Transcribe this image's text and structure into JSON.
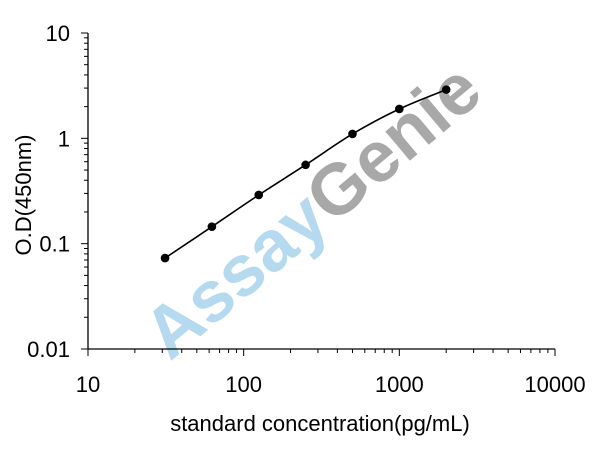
{
  "chart_data": {
    "type": "line",
    "title": "",
    "xlabel": "standard concentration(pg/mL)",
    "ylabel": "O.D(450nm)",
    "x_scale": "log",
    "y_scale": "log",
    "xlim": [
      10,
      10000
    ],
    "ylim": [
      0.01,
      10
    ],
    "x_tick_labels": [
      "10",
      "100",
      "1000",
      "10000"
    ],
    "y_tick_labels": [
      "10",
      "1",
      "0.1",
      "0.01"
    ],
    "grid": false,
    "legend": "none",
    "watermark": "AssayGenie",
    "series": [
      {
        "x": [
          31.25,
          62.5,
          125,
          250,
          500,
          1000,
          2000
        ],
        "y": [
          0.073,
          0.145,
          0.29,
          0.56,
          1.1,
          1.9,
          2.9
        ]
      }
    ],
    "colors": {
      "line": "#000000",
      "marker": "#000000",
      "watermark_blue": "#a9d4ee",
      "watermark_gray": "#9a9a9a"
    }
  }
}
